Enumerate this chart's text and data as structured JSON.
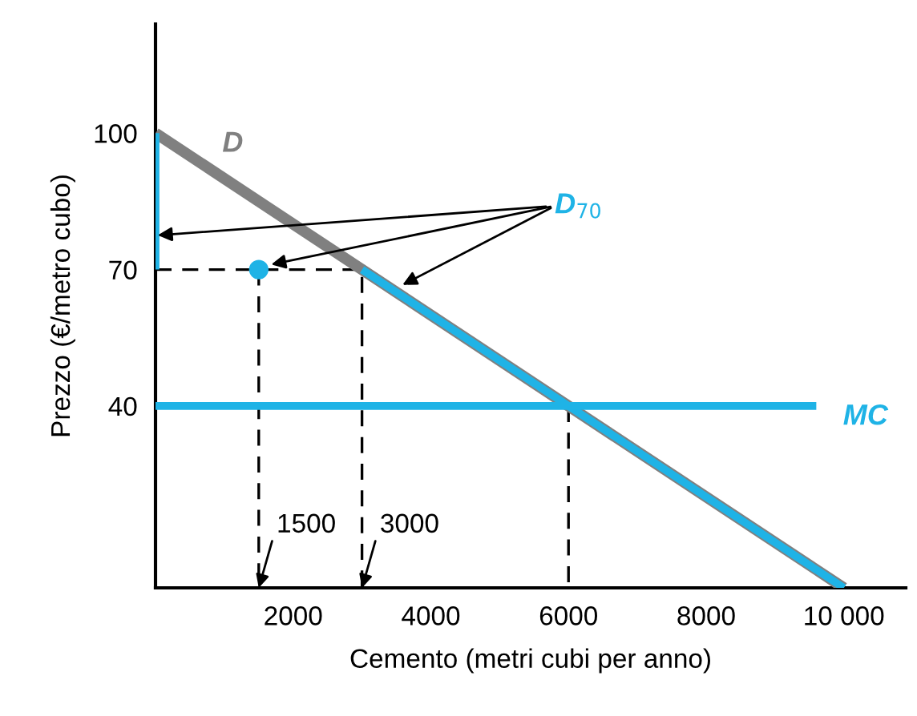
{
  "chart_data": {
    "type": "line",
    "xlabel": "Cemento (metri cubi per anno)",
    "ylabel": "Prezzo (€/metro cubo)",
    "xlim": [
      0,
      10900
    ],
    "ylim": [
      0,
      124
    ],
    "xticks": [
      2000,
      4000,
      6000,
      8000,
      {
        "value": 10000,
        "label": "10 000"
      }
    ],
    "yticks": [
      40,
      70,
      100
    ],
    "series": [
      {
        "name": "D",
        "color": "#808080",
        "x": [
          0,
          10000
        ],
        "values": [
          100,
          0
        ]
      },
      {
        "name": "D$_{70}$",
        "color": "#1fb3e6",
        "x": [
          0,
          0,
          1500,
          3000,
          10000
        ],
        "values": [
          100,
          70,
          null,
          70,
          0
        ]
      },
      {
        "type": "scatter",
        "color": "#1fb3e6",
        "x": [
          1500
        ],
        "values": [
          70
        ],
        "marker": "circle"
      },
      {
        "name": "MC",
        "color": "#1fb3e6",
        "x": [
          0,
          9600
        ],
        "values": [
          40,
          40
        ]
      },
      {
        "color": "#000000",
        "line_style": "dashed",
        "x": [
          0,
          3000,
          3000,
          null,
          1500,
          1500,
          null,
          6000,
          6000
        ],
        "values": [
          70,
          70,
          0,
          null,
          70,
          0,
          null,
          40,
          0
        ]
      }
    ],
    "annotations": [
      {
        "text": "1500",
        "x": 1500,
        "y": 0
      },
      {
        "text": "3000",
        "x": 3000,
        "y": 0
      }
    ],
    "grid": false,
    "legend": false
  }
}
